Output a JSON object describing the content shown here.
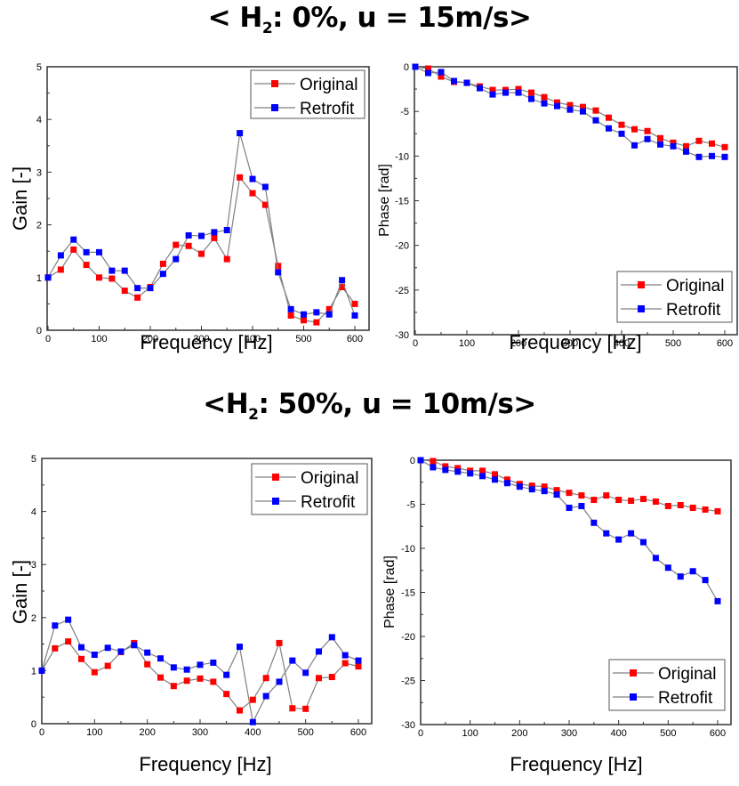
{
  "titles": [
    {
      "prefix": "< H",
      "sub": "2",
      "suffix": ": 0%, u = 15m/s>"
    },
    {
      "prefix": "<H",
      "sub": "2",
      "suffix": ": 50%, u = 10m/s>"
    }
  ],
  "colors": {
    "original": "#ff0000",
    "retrofit": "#0000ff",
    "line": "#808080"
  },
  "chart_data": [
    {
      "type": "line",
      "panel": "top-left",
      "title": "",
      "xlabel": "Frequency [Hz]",
      "ylabel": "Gain [-]",
      "xlim": [
        0,
        600
      ],
      "ylim": [
        0,
        5
      ],
      "xticks": [
        "0",
        "100",
        "200",
        "300",
        "400",
        "500",
        "600"
      ],
      "yticks": [
        "0",
        "1",
        "2",
        "3",
        "4",
        "5"
      ],
      "legend": "top-right",
      "grid": false,
      "x": [
        0,
        25,
        50,
        75,
        100,
        125,
        150,
        175,
        200,
        225,
        250,
        275,
        300,
        325,
        350,
        375,
        400,
        425,
        450,
        475,
        500,
        525,
        550,
        575,
        600
      ],
      "series": [
        {
          "name": "Original",
          "values": [
            1.0,
            1.15,
            1.53,
            1.24,
            1.0,
            0.98,
            0.75,
            0.62,
            0.82,
            1.26,
            1.62,
            1.6,
            1.45,
            1.75,
            1.35,
            2.9,
            2.6,
            2.38,
            1.22,
            0.28,
            0.19,
            0.15,
            0.4,
            0.82,
            0.5
          ]
        },
        {
          "name": "Retrofit",
          "values": [
            1.0,
            1.42,
            1.72,
            1.48,
            1.48,
            1.13,
            1.13,
            0.8,
            0.8,
            1.07,
            1.35,
            1.8,
            1.79,
            1.86,
            1.9,
            3.74,
            2.87,
            2.72,
            1.1,
            0.4,
            0.3,
            0.34,
            0.3,
            0.95,
            0.28
          ]
        }
      ]
    },
    {
      "type": "line",
      "panel": "top-right",
      "title": "",
      "xlabel": "Frequency [Hz]",
      "ylabel": "Phase [rad]",
      "xlim": [
        0,
        600
      ],
      "ylim": [
        -30,
        0
      ],
      "xticks": [
        "0",
        "100",
        "200",
        "300",
        "400",
        "500",
        "600"
      ],
      "yticks": [
        "-30",
        "-25",
        "-20",
        "-15",
        "-10",
        "-5",
        "0"
      ],
      "legend": "bottom-right",
      "grid": false,
      "x": [
        0,
        25,
        50,
        75,
        100,
        125,
        150,
        175,
        200,
        225,
        250,
        275,
        300,
        325,
        350,
        375,
        400,
        425,
        450,
        475,
        500,
        525,
        550,
        575,
        600
      ],
      "series": [
        {
          "name": "Original",
          "values": [
            0,
            -0.2,
            -1.1,
            -1.7,
            -1.8,
            -2.2,
            -2.6,
            -2.6,
            -2.5,
            -2.9,
            -3.4,
            -4.0,
            -4.3,
            -4.5,
            -4.9,
            -5.7,
            -6.5,
            -7.0,
            -7.2,
            -8.0,
            -8.5,
            -8.9,
            -8.3,
            -8.6,
            -9.0
          ]
        },
        {
          "name": "Retrofit",
          "values": [
            0,
            -0.7,
            -0.6,
            -1.6,
            -1.8,
            -2.4,
            -3.1,
            -2.9,
            -2.9,
            -3.6,
            -4.1,
            -4.4,
            -4.8,
            -5.0,
            -6.0,
            -6.9,
            -7.5,
            -8.8,
            -8.1,
            -8.7,
            -8.9,
            -9.5,
            -10.1,
            -10.0,
            -10.1
          ]
        }
      ]
    },
    {
      "type": "line",
      "panel": "bottom-left",
      "title": "",
      "xlabel": "Frequency [Hz]",
      "ylabel": "Gain [-]",
      "xlim": [
        0,
        600
      ],
      "ylim": [
        0,
        5
      ],
      "xticks": [
        "0",
        "100",
        "200",
        "300",
        "400",
        "500",
        "600"
      ],
      "yticks": [
        "0",
        "1",
        "2",
        "3",
        "4",
        "5"
      ],
      "legend": "top-right",
      "grid": false,
      "x": [
        0,
        25,
        50,
        75,
        100,
        125,
        150,
        175,
        200,
        225,
        250,
        275,
        300,
        325,
        350,
        375,
        400,
        425,
        450,
        475,
        500,
        525,
        550,
        575,
        600
      ],
      "series": [
        {
          "name": "Original",
          "values": [
            1.0,
            1.42,
            1.55,
            1.22,
            0.97,
            1.09,
            1.35,
            1.52,
            1.12,
            0.87,
            0.71,
            0.81,
            0.85,
            0.79,
            0.56,
            0.25,
            0.45,
            0.86,
            1.52,
            0.29,
            0.28,
            0.86,
            0.88,
            1.14,
            1.08
          ]
        },
        {
          "name": "Retrofit",
          "values": [
            1.0,
            1.85,
            1.96,
            1.44,
            1.3,
            1.43,
            1.36,
            1.48,
            1.34,
            1.23,
            1.06,
            1.02,
            1.11,
            1.15,
            0.92,
            1.45,
            0.03,
            0.52,
            0.79,
            1.19,
            0.96,
            1.36,
            1.63,
            1.29,
            1.19
          ]
        }
      ]
    },
    {
      "type": "line",
      "panel": "bottom-right",
      "title": "",
      "xlabel": "Frequency [Hz]",
      "ylabel": "Phase [rad]",
      "xlim": [
        0,
        600
      ],
      "ylim": [
        -30,
        0
      ],
      "xticks": [
        "0",
        "100",
        "200",
        "300",
        "400",
        "500",
        "600"
      ],
      "yticks": [
        "-30",
        "-25",
        "-20",
        "-15",
        "-10",
        "-5",
        "0"
      ],
      "legend": "bottom-right",
      "grid": false,
      "x": [
        0,
        25,
        50,
        75,
        100,
        125,
        150,
        175,
        200,
        225,
        250,
        275,
        300,
        325,
        350,
        375,
        400,
        425,
        450,
        475,
        500,
        525,
        550,
        575,
        600
      ],
      "series": [
        {
          "name": "Original",
          "values": [
            0,
            -0.1,
            -0.7,
            -0.9,
            -1.2,
            -1.2,
            -1.6,
            -2.2,
            -2.7,
            -2.9,
            -3.0,
            -3.4,
            -3.7,
            -4.0,
            -4.5,
            -4.0,
            -4.5,
            -4.6,
            -4.4,
            -4.7,
            -5.2,
            -5.1,
            -5.4,
            -5.6,
            -5.8
          ]
        },
        {
          "name": "Retrofit",
          "values": [
            0,
            -0.8,
            -1.1,
            -1.3,
            -1.5,
            -1.8,
            -2.2,
            -2.6,
            -3.0,
            -3.3,
            -3.5,
            -3.9,
            -5.4,
            -5.2,
            -7.1,
            -8.3,
            -9.0,
            -8.3,
            -9.3,
            -11.1,
            -12.2,
            -13.2,
            -12.6,
            -13.6,
            -16.0
          ]
        }
      ]
    }
  ]
}
